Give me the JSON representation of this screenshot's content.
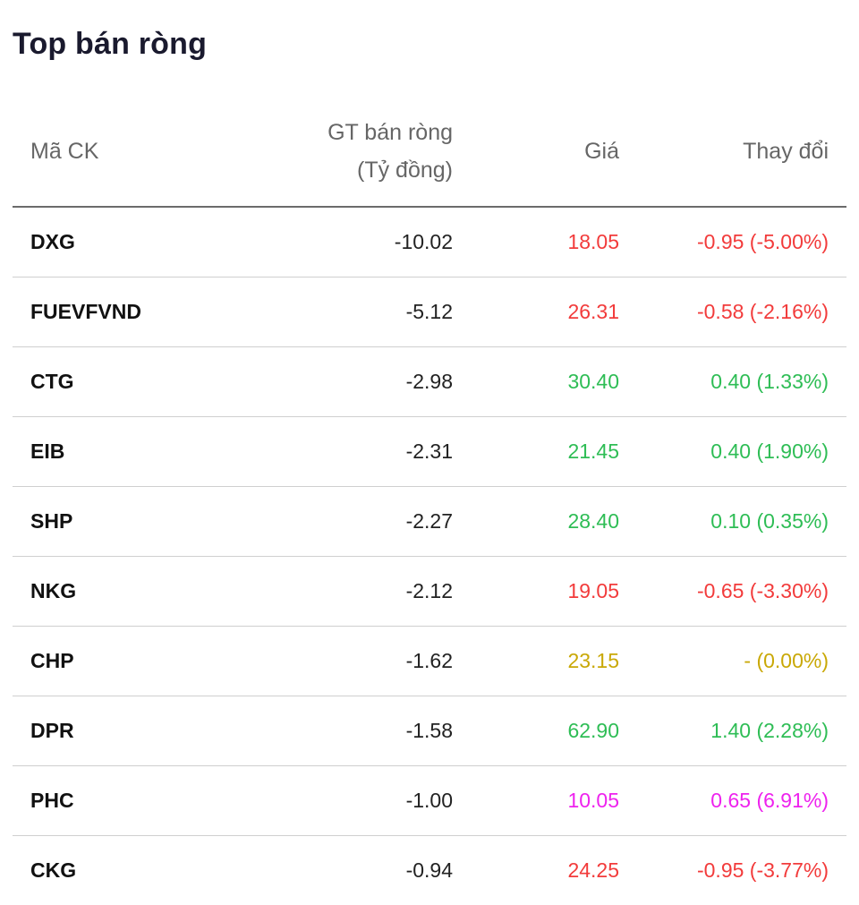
{
  "title": "Top bán ròng",
  "columns": {
    "code": "Mã CK",
    "value": "GT bán ròng (Tỷ đồng)",
    "value_line1": "GT bán ròng",
    "value_line2": "(Tỷ đồng)",
    "price": "Giá",
    "change": "Thay đổi"
  },
  "colors": {
    "down": "#f23b3b",
    "up": "#2ebd55",
    "reference": "#c9a806",
    "ceiling": "#ee22ee"
  },
  "rows": [
    {
      "code": "DXG",
      "value": "-10.02",
      "price": "18.05",
      "change": "-0.95 (-5.00%)",
      "status": "down"
    },
    {
      "code": "FUEVFVND",
      "value": "-5.12",
      "price": "26.31",
      "change": "-0.58 (-2.16%)",
      "status": "down"
    },
    {
      "code": "CTG",
      "value": "-2.98",
      "price": "30.40",
      "change": "0.40 (1.33%)",
      "status": "up"
    },
    {
      "code": "EIB",
      "value": "-2.31",
      "price": "21.45",
      "change": "0.40 (1.90%)",
      "status": "up"
    },
    {
      "code": "SHP",
      "value": "-2.27",
      "price": "28.40",
      "change": "0.10 (0.35%)",
      "status": "up"
    },
    {
      "code": "NKG",
      "value": "-2.12",
      "price": "19.05",
      "change": "-0.65 (-3.30%)",
      "status": "down"
    },
    {
      "code": "CHP",
      "value": "-1.62",
      "price": "23.15",
      "change": "- (0.00%)",
      "status": "ref"
    },
    {
      "code": "DPR",
      "value": "-1.58",
      "price": "62.90",
      "change": "1.40 (2.28%)",
      "status": "up"
    },
    {
      "code": "PHC",
      "value": "-1.00",
      "price": "10.05",
      "change": "0.65 (6.91%)",
      "status": "ceil"
    },
    {
      "code": "CKG",
      "value": "-0.94",
      "price": "24.25",
      "change": "-0.95 (-3.77%)",
      "status": "down"
    }
  ]
}
